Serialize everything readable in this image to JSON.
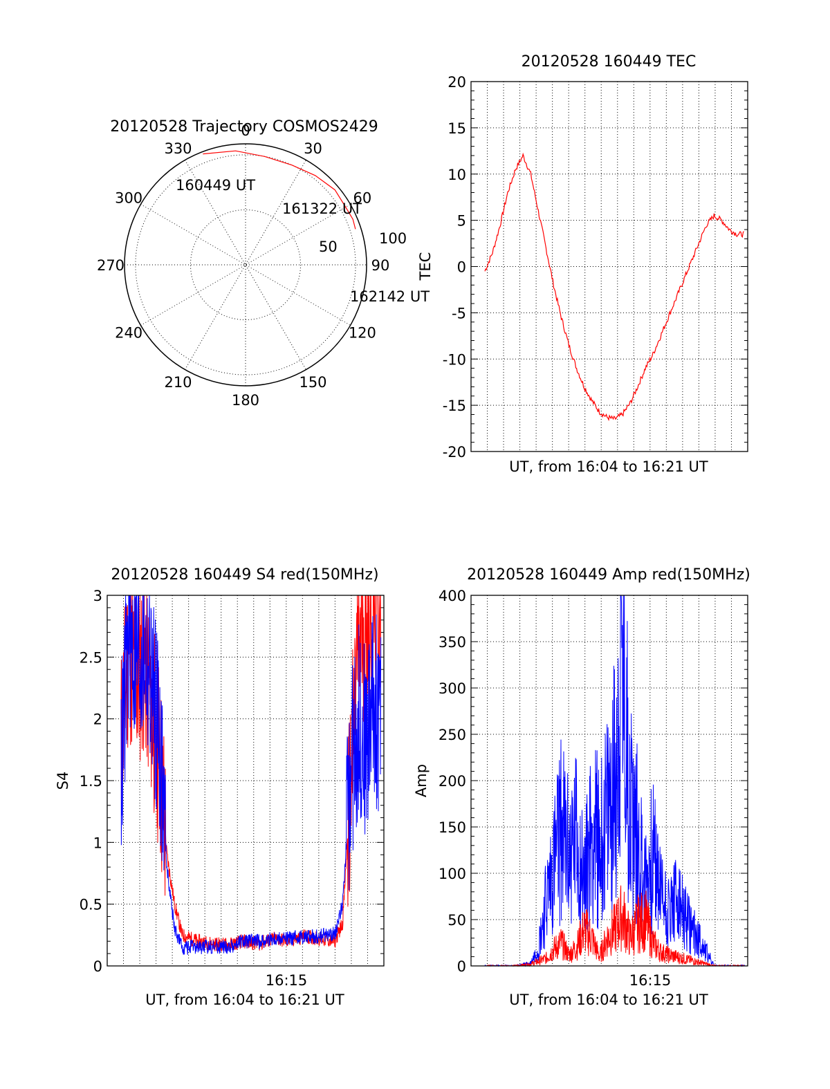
{
  "colors": {
    "red": "#ff0000",
    "blue": "#0000ff",
    "axis": "#000000",
    "background": "#ffffff"
  },
  "chart_data": [
    {
      "type": "polar",
      "title": "20120528 Trajectory COSMOS2429",
      "angle_labels": [
        "0",
        "30",
        "60",
        "90",
        "120",
        "150",
        "180",
        "210",
        "240",
        "270",
        "300",
        "330"
      ],
      "radial_labels": [
        "50",
        "100"
      ],
      "radial_values": [
        50,
        100
      ],
      "track_annotations": [
        "160449 UT",
        "161322 UT",
        "162142 UT"
      ],
      "track": {
        "color": "red",
        "azimuth_deg": [
          -21,
          -5,
          10,
          25,
          38,
          50,
          60,
          67,
          72
        ],
        "radius": [
          108,
          104,
          100,
          100,
          103,
          106,
          105,
          106,
          105
        ]
      }
    },
    {
      "type": "line",
      "title": "20120528 160449 TEC",
      "xlabel": "UT, from 16:04 to 16:21 UT",
      "ylabel": "TEC",
      "ylim": [
        -20,
        20
      ],
      "y_ticks": [
        "20",
        "15",
        "10",
        "5",
        "0",
        "-5",
        "-10",
        "-15",
        "-20"
      ],
      "x_range_minutes": [
        0,
        17.2
      ],
      "grid": true,
      "series": [
        {
          "color": "red",
          "x": [
            0,
            0.5,
            1,
            1.5,
            2,
            2.5,
            3,
            3.5,
            4,
            4.5,
            5,
            5.5,
            6,
            6.5,
            7,
            7.5,
            8,
            8.5,
            9,
            9.5,
            10,
            10.5,
            11,
            11.5,
            12,
            12.5,
            13,
            13.5,
            14,
            14.5,
            15,
            15.5,
            16,
            16.5,
            17
          ],
          "y": [
            -0.5,
            1.5,
            4.5,
            8,
            10.5,
            12,
            10,
            6,
            2,
            -2,
            -5.5,
            -8.5,
            -11,
            -13,
            -14.5,
            -15.7,
            -16.3,
            -16.5,
            -16,
            -14.8,
            -13,
            -11,
            -9.5,
            -7.5,
            -5.5,
            -3.5,
            -1.5,
            0.5,
            2.5,
            4.5,
            5.5,
            5,
            4,
            3.5,
            3.5
          ]
        }
      ]
    },
    {
      "type": "line",
      "title": "20120528 160449 S4 red(150MHz)",
      "xlabel": "UT, from 16:04 to 16:21 UT",
      "ylabel": "S4",
      "ylim": [
        0,
        3
      ],
      "y_ticks": [
        "3",
        "2.5",
        "2",
        "1.5",
        "1",
        "0.5",
        "0"
      ],
      "x_tick_label": "16:15",
      "x_range_minutes": [
        0,
        17.2
      ],
      "grid": true,
      "series": [
        {
          "color": "red",
          "x": [
            0,
            0.5,
            1,
            1.5,
            2,
            2.5,
            3,
            3.5,
            4,
            5,
            6,
            7,
            8,
            9,
            10,
            11,
            12,
            13,
            14,
            14.5,
            15,
            15.5,
            16,
            16.5,
            17
          ],
          "y": [
            1.8,
            2.6,
            2.3,
            2.5,
            2.1,
            1.7,
            0.9,
            0.5,
            0.25,
            0.2,
            0.18,
            0.17,
            0.2,
            0.18,
            0.22,
            0.2,
            0.24,
            0.22,
            0.2,
            0.35,
            1.4,
            2.6,
            2.8,
            2.9,
            2.9
          ]
        },
        {
          "color": "blue",
          "x": [
            0,
            0.5,
            1,
            1.5,
            2,
            2.5,
            3,
            3.5,
            4,
            5,
            6,
            7,
            8,
            9,
            10,
            11,
            12,
            13,
            14,
            14.5,
            15,
            15.5,
            16,
            16.5,
            17
          ],
          "y": [
            1.6,
            2.7,
            2.5,
            2.6,
            2.3,
            1.9,
            0.8,
            0.3,
            0.15,
            0.15,
            0.16,
            0.15,
            0.2,
            0.2,
            0.22,
            0.22,
            0.24,
            0.24,
            0.26,
            0.5,
            1.5,
            2.0,
            1.8,
            2.2,
            1.9
          ]
        }
      ]
    },
    {
      "type": "line",
      "title": "20120528 160449 Amp red(150MHz)",
      "xlabel": "UT, from 16:04 to 16:21 UT",
      "ylabel": "Amp",
      "ylim": [
        0,
        400
      ],
      "y_ticks": [
        "400",
        "350",
        "300",
        "250",
        "200",
        "150",
        "100",
        "50",
        "0"
      ],
      "x_tick_label": "16:15",
      "x_range_minutes": [
        0,
        17.2
      ],
      "grid": true,
      "series": [
        {
          "color": "blue",
          "x": [
            0,
            1,
            2,
            3,
            3.5,
            4,
            4.5,
            5,
            5.5,
            6,
            6.5,
            7,
            7.5,
            8,
            8.5,
            9,
            9.5,
            10,
            10.5,
            11,
            11.5,
            12,
            12.5,
            13,
            13.5,
            14,
            14.5,
            15,
            16,
            17
          ],
          "y": [
            0,
            0,
            0,
            3,
            20,
            70,
            110,
            150,
            120,
            140,
            90,
            150,
            130,
            160,
            200,
            330,
            180,
            140,
            90,
            120,
            80,
            60,
            70,
            55,
            40,
            30,
            15,
            0,
            0,
            0
          ]
        },
        {
          "color": "red",
          "x": [
            0,
            1,
            2,
            3,
            3.5,
            4,
            4.5,
            5,
            5.5,
            6,
            6.5,
            7,
            7.5,
            8,
            8.5,
            9,
            9.5,
            10,
            10.5,
            11,
            11.5,
            12,
            12.5,
            13,
            13.5,
            14,
            14.5,
            15,
            16,
            17
          ],
          "y": [
            0,
            0,
            0,
            2,
            5,
            8,
            18,
            25,
            12,
            20,
            40,
            30,
            10,
            30,
            40,
            55,
            30,
            45,
            50,
            25,
            15,
            12,
            10,
            8,
            6,
            4,
            2,
            0,
            0,
            0
          ]
        }
      ]
    }
  ]
}
